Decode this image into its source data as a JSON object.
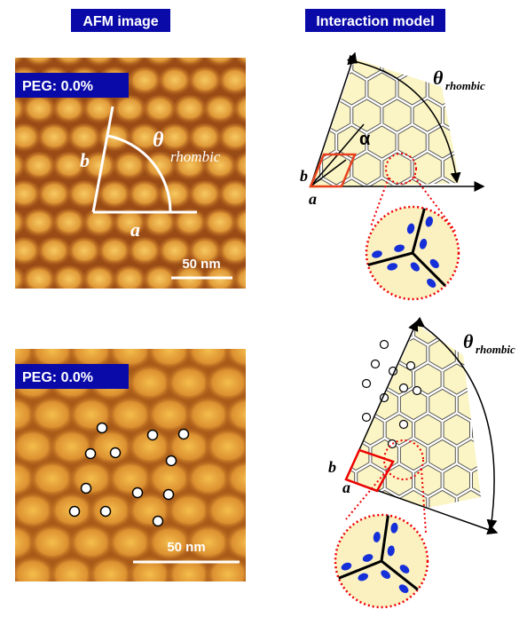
{
  "headers": {
    "afm": "AFM image",
    "model": "Interaction model"
  },
  "afm_panels": [
    {
      "peg": "PEG: 0.0%",
      "scale": "50 nm",
      "a": "a",
      "b": "b",
      "theta": "θ",
      "theta_sub": "rhombic"
    },
    {
      "peg": "PEG: 0.0%",
      "scale": "50 nm"
    }
  ],
  "models": [
    {
      "theta": "θ",
      "theta_sub": "rhombic",
      "alpha": "α",
      "a": "a",
      "b": "b"
    },
    {
      "theta": "θ",
      "theta_sub": "rhombic",
      "a": "a",
      "b": "b"
    }
  ]
}
